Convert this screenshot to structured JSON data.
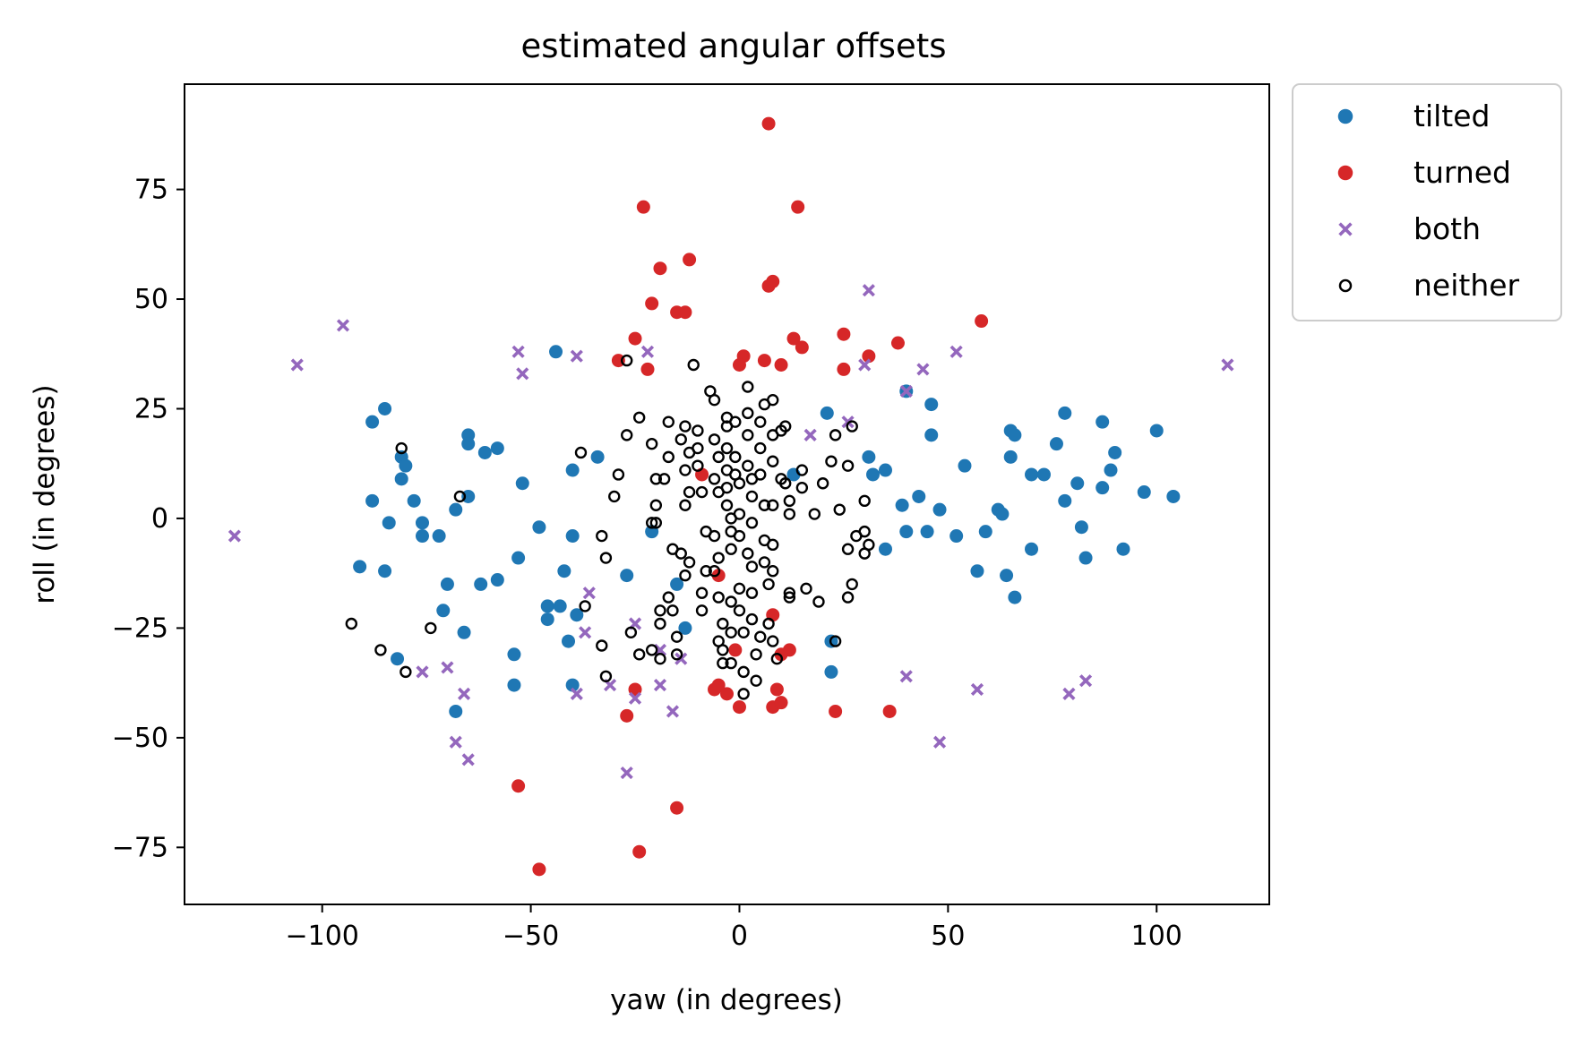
{
  "chart_data": {
    "type": "scatter",
    "title": "estimated angular offsets",
    "xlabel": "yaw (in degrees)",
    "ylabel": "roll (in degrees)",
    "xlim": [
      -133,
      127
    ],
    "ylim": [
      -88,
      99
    ],
    "xticks": [
      -100,
      -50,
      0,
      50,
      100
    ],
    "yticks": [
      -75,
      -50,
      -25,
      0,
      25,
      50,
      75
    ],
    "xtick_labels": [
      "−100",
      "−50",
      "0",
      "50",
      "100"
    ],
    "ytick_labels": [
      "−75",
      "−50",
      "−25",
      "0",
      "25",
      "50",
      "75"
    ],
    "grid": false,
    "legend_position": "outside-top-right",
    "series": [
      {
        "name": "tilted",
        "marker": "circle",
        "color": "#1f77b4",
        "points": [
          [
            -88,
            22
          ],
          [
            -85,
            25
          ],
          [
            -81,
            14
          ],
          [
            -80,
            12
          ],
          [
            -81,
            9
          ],
          [
            -78,
            4
          ],
          [
            -88,
            4
          ],
          [
            -84,
            -1
          ],
          [
            -76,
            -1
          ],
          [
            -76,
            -4
          ],
          [
            -72,
            -4
          ],
          [
            -91,
            -11
          ],
          [
            -85,
            -12
          ],
          [
            -70,
            -15
          ],
          [
            -71,
            -21
          ],
          [
            -66,
            -26
          ],
          [
            -82,
            -32
          ],
          [
            -68,
            -44
          ],
          [
            -65,
            19
          ],
          [
            -65,
            17
          ],
          [
            -61,
            15
          ],
          [
            -58,
            16
          ],
          [
            -65,
            5
          ],
          [
            -68,
            2
          ],
          [
            -62,
            -15
          ],
          [
            -58,
            -14
          ],
          [
            -52,
            8
          ],
          [
            -48,
            -2
          ],
          [
            -53,
            -9
          ],
          [
            -44,
            38
          ],
          [
            -40,
            11
          ],
          [
            -34,
            14
          ],
          [
            -40,
            -4
          ],
          [
            -42,
            -12
          ],
          [
            -46,
            -20
          ],
          [
            -43,
            -20
          ],
          [
            -46,
            -23
          ],
          [
            -39,
            -22
          ],
          [
            -41,
            -28
          ],
          [
            -40,
            -38
          ],
          [
            -54,
            -31
          ],
          [
            -54,
            -38
          ],
          [
            -27,
            -13
          ],
          [
            -21,
            -3
          ],
          [
            -15,
            -15
          ],
          [
            -13,
            -25
          ],
          [
            13,
            10
          ],
          [
            21,
            24
          ],
          [
            22,
            -28
          ],
          [
            22,
            -35
          ],
          [
            31,
            14
          ],
          [
            32,
            10
          ],
          [
            35,
            11
          ],
          [
            40,
            29
          ],
          [
            46,
            26
          ],
          [
            46,
            19
          ],
          [
            39,
            3
          ],
          [
            43,
            5
          ],
          [
            40,
            -3
          ],
          [
            35,
            -7
          ],
          [
            45,
            -3
          ],
          [
            48,
            2
          ],
          [
            52,
            -4
          ],
          [
            54,
            12
          ],
          [
            57,
            -12
          ],
          [
            59,
            -3
          ],
          [
            62,
            2
          ],
          [
            63,
            1
          ],
          [
            64,
            -13
          ],
          [
            65,
            14
          ],
          [
            65,
            20
          ],
          [
            66,
            19
          ],
          [
            66,
            -18
          ],
          [
            70,
            10
          ],
          [
            70,
            -7
          ],
          [
            73,
            10
          ],
          [
            76,
            17
          ],
          [
            78,
            24
          ],
          [
            78,
            4
          ],
          [
            81,
            8
          ],
          [
            82,
            -2
          ],
          [
            83,
            -9
          ],
          [
            87,
            22
          ],
          [
            87,
            7
          ],
          [
            89,
            11
          ],
          [
            90,
            15
          ],
          [
            92,
            -7
          ],
          [
            97,
            6
          ],
          [
            100,
            20
          ],
          [
            104,
            5
          ]
        ]
      },
      {
        "name": "turned",
        "marker": "circle",
        "color": "#d62728",
        "points": [
          [
            7,
            90
          ],
          [
            -23,
            71
          ],
          [
            14,
            71
          ],
          [
            -19,
            57
          ],
          [
            -12,
            59
          ],
          [
            7,
            53
          ],
          [
            8,
            54
          ],
          [
            -21,
            49
          ],
          [
            -15,
            47
          ],
          [
            -13,
            47
          ],
          [
            -25,
            41
          ],
          [
            -29,
            36
          ],
          [
            -22,
            34
          ],
          [
            1,
            37
          ],
          [
            0,
            35
          ],
          [
            6,
            36
          ],
          [
            10,
            35
          ],
          [
            13,
            41
          ],
          [
            15,
            39
          ],
          [
            25,
            42
          ],
          [
            25,
            34
          ],
          [
            31,
            37
          ],
          [
            38,
            40
          ],
          [
            58,
            45
          ],
          [
            -9,
            10
          ],
          [
            -5,
            -13
          ],
          [
            8,
            -22
          ],
          [
            -1,
            -30
          ],
          [
            12,
            -30
          ],
          [
            10,
            -31
          ],
          [
            -25,
            -39
          ],
          [
            -6,
            -39
          ],
          [
            -5,
            -38
          ],
          [
            -3,
            -40
          ],
          [
            0,
            -43
          ],
          [
            8,
            -43
          ],
          [
            9,
            -39
          ],
          [
            10,
            -42
          ],
          [
            23,
            -44
          ],
          [
            36,
            -44
          ],
          [
            -27,
            -45
          ],
          [
            -53,
            -61
          ],
          [
            -15,
            -66
          ],
          [
            -24,
            -76
          ],
          [
            -48,
            -80
          ]
        ]
      },
      {
        "name": "both",
        "marker": "x",
        "color": "#9467bd",
        "points": [
          [
            -121,
            -4
          ],
          [
            -106,
            35
          ],
          [
            -95,
            44
          ],
          [
            -53,
            38
          ],
          [
            -52,
            33
          ],
          [
            -39,
            37
          ],
          [
            -22,
            38
          ],
          [
            17,
            19
          ],
          [
            26,
            22
          ],
          [
            30,
            35
          ],
          [
            31,
            52
          ],
          [
            40,
            29
          ],
          [
            44,
            34
          ],
          [
            52,
            38
          ],
          [
            117,
            35
          ],
          [
            -36,
            -17
          ],
          [
            -37,
            -26
          ],
          [
            -31,
            -38
          ],
          [
            -39,
            -40
          ],
          [
            -25,
            -24
          ],
          [
            -19,
            -30
          ],
          [
            -14,
            -32
          ],
          [
            -25,
            -41
          ],
          [
            -19,
            -38
          ],
          [
            -16,
            -44
          ],
          [
            -27,
            -58
          ],
          [
            -76,
            -35
          ],
          [
            -70,
            -34
          ],
          [
            -66,
            -40
          ],
          [
            -68,
            -51
          ],
          [
            -65,
            -55
          ],
          [
            40,
            -36
          ],
          [
            48,
            -51
          ],
          [
            57,
            -39
          ],
          [
            79,
            -40
          ],
          [
            83,
            -37
          ]
        ]
      },
      {
        "name": "neither",
        "marker": "open-circle",
        "color": "#000000",
        "points": [
          [
            -81,
            16
          ],
          [
            -67,
            5
          ],
          [
            -93,
            -24
          ],
          [
            -86,
            -30
          ],
          [
            -80,
            -35
          ],
          [
            -74,
            -25
          ],
          [
            -38,
            15
          ],
          [
            -37,
            -20
          ],
          [
            -33,
            -4
          ],
          [
            -32,
            -9
          ],
          [
            -33,
            -29
          ],
          [
            -32,
            -36
          ],
          [
            -30,
            5
          ],
          [
            -29,
            10
          ],
          [
            -27,
            19
          ],
          [
            -24,
            23
          ],
          [
            -26,
            -26
          ],
          [
            -24,
            -31
          ],
          [
            -27,
            36
          ],
          [
            -21,
            17
          ],
          [
            -20,
            9
          ],
          [
            -20,
            3
          ],
          [
            -21,
            -1
          ],
          [
            -20,
            -1
          ],
          [
            -19,
            -21
          ],
          [
            -19,
            -24
          ],
          [
            -21,
            -30
          ],
          [
            -19,
            -32
          ],
          [
            -17,
            22
          ],
          [
            -17,
            14
          ],
          [
            -18,
            9
          ],
          [
            -16,
            -7
          ],
          [
            -17,
            -18
          ],
          [
            -16,
            -21
          ],
          [
            -15,
            -27
          ],
          [
            -15,
            -31
          ],
          [
            -14,
            18
          ],
          [
            -13,
            21
          ],
          [
            -13,
            11
          ],
          [
            -12,
            15
          ],
          [
            -12,
            6
          ],
          [
            -13,
            3
          ],
          [
            -14,
            -8
          ],
          [
            -12,
            -10
          ],
          [
            -13,
            -13
          ],
          [
            -11,
            35
          ],
          [
            -10,
            20
          ],
          [
            -10,
            16
          ],
          [
            -10,
            12
          ],
          [
            -9,
            6
          ],
          [
            -8,
            -3
          ],
          [
            -8,
            -12
          ],
          [
            -9,
            -17
          ],
          [
            -9,
            -21
          ],
          [
            -7,
            29
          ],
          [
            -6,
            27
          ],
          [
            -6,
            18
          ],
          [
            -5,
            14
          ],
          [
            -6,
            9
          ],
          [
            -5,
            6
          ],
          [
            -6,
            -4
          ],
          [
            -5,
            -9
          ],
          [
            -6,
            -12
          ],
          [
            -5,
            -18
          ],
          [
            -5,
            -28
          ],
          [
            -4,
            -24
          ],
          [
            -4,
            -30
          ],
          [
            -4,
            -33
          ],
          [
            -3,
            23
          ],
          [
            -3,
            21
          ],
          [
            -3,
            16
          ],
          [
            -3,
            11
          ],
          [
            -3,
            7
          ],
          [
            -3,
            3
          ],
          [
            -2,
            0
          ],
          [
            -2,
            -3
          ],
          [
            -2,
            -7
          ],
          [
            -2,
            -19
          ],
          [
            -2,
            -26
          ],
          [
            -2,
            -33
          ],
          [
            -1,
            22
          ],
          [
            -1,
            14
          ],
          [
            -1,
            10
          ],
          [
            0,
            8
          ],
          [
            0,
            1
          ],
          [
            0,
            -4
          ],
          [
            0,
            -16
          ],
          [
            0,
            -21
          ],
          [
            1,
            -26
          ],
          [
            1,
            -40
          ],
          [
            1,
            -35
          ],
          [
            2,
            24
          ],
          [
            2,
            19
          ],
          [
            2,
            12
          ],
          [
            3,
            9
          ],
          [
            3,
            5
          ],
          [
            3,
            -1
          ],
          [
            2,
            -8
          ],
          [
            3,
            -11
          ],
          [
            3,
            -17
          ],
          [
            3,
            -23
          ],
          [
            2,
            30
          ],
          [
            4,
            -31
          ],
          [
            4,
            -37
          ],
          [
            5,
            22
          ],
          [
            5,
            16
          ],
          [
            5,
            10
          ],
          [
            6,
            3
          ],
          [
            6,
            -5
          ],
          [
            6,
            -10
          ],
          [
            5,
            -27
          ],
          [
            6,
            26
          ],
          [
            7,
            -15
          ],
          [
            7,
            -24
          ],
          [
            8,
            27
          ],
          [
            8,
            19
          ],
          [
            8,
            13
          ],
          [
            8,
            3
          ],
          [
            8,
            -6
          ],
          [
            8,
            -12
          ],
          [
            8,
            -28
          ],
          [
            9,
            -32
          ],
          [
            10,
            20
          ],
          [
            10,
            9
          ],
          [
            11,
            21
          ],
          [
            11,
            8
          ],
          [
            12,
            4
          ],
          [
            12,
            1
          ],
          [
            12,
            -17
          ],
          [
            12,
            -18
          ],
          [
            15,
            11
          ],
          [
            15,
            7
          ],
          [
            16,
            -16
          ],
          [
            18,
            1
          ],
          [
            19,
            -19
          ],
          [
            20,
            8
          ],
          [
            22,
            13
          ],
          [
            23,
            19
          ],
          [
            23,
            -28
          ],
          [
            24,
            2
          ],
          [
            26,
            -7
          ],
          [
            26,
            12
          ],
          [
            27,
            21
          ],
          [
            28,
            -4
          ],
          [
            30,
            -8
          ],
          [
            30,
            -3
          ],
          [
            31,
            -6
          ],
          [
            30,
            4
          ],
          [
            27,
            -15
          ],
          [
            26,
            -18
          ]
        ]
      }
    ]
  }
}
